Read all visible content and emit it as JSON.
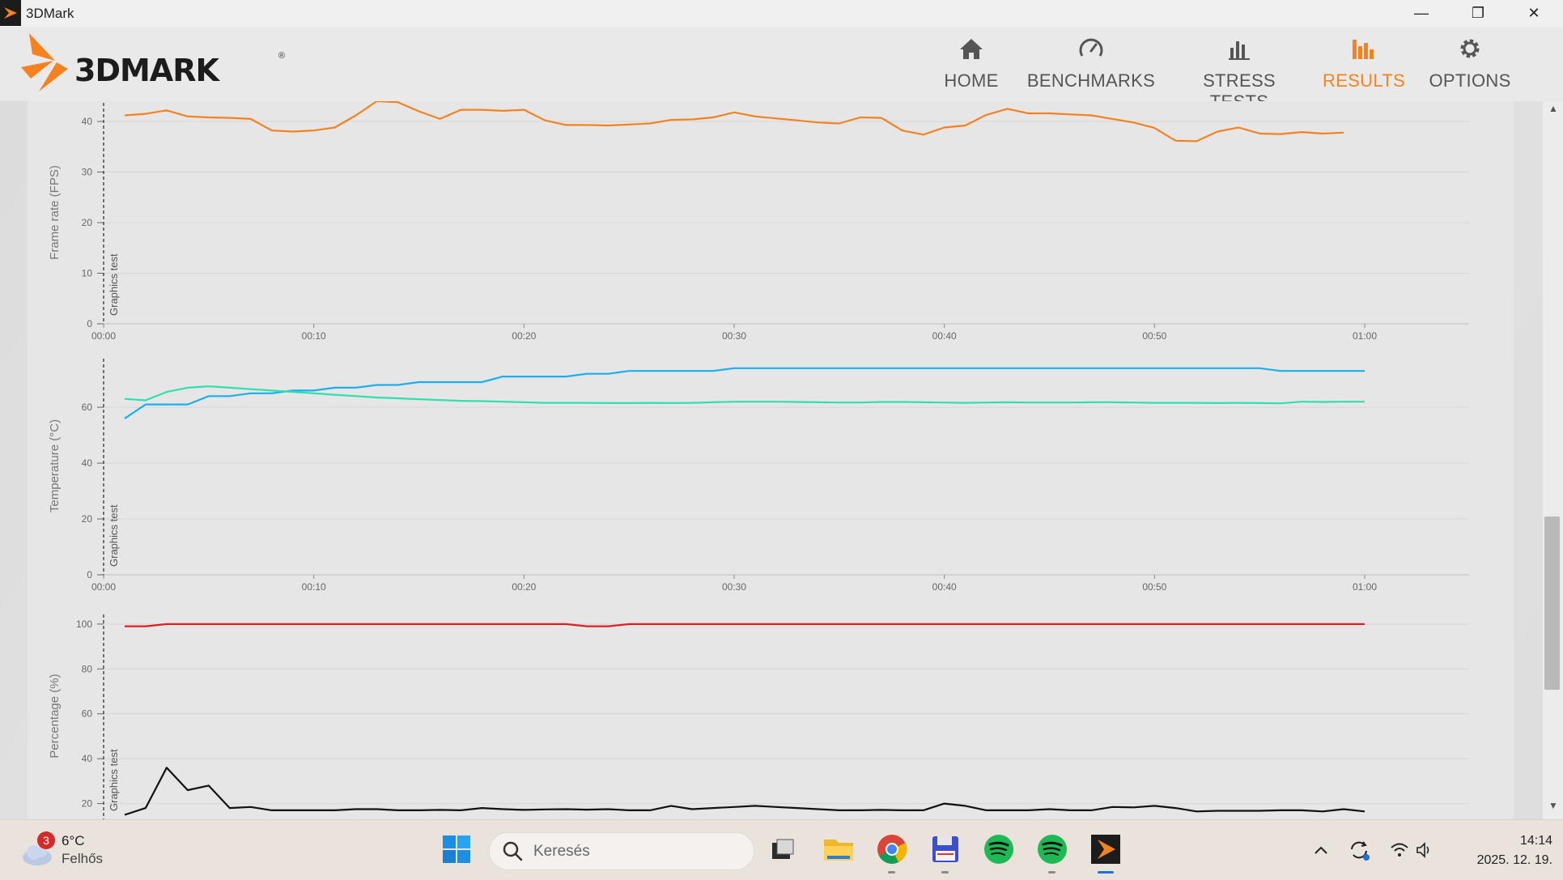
{
  "window": {
    "title": "3DMark",
    "controls": {
      "minimize": "—",
      "restore": "❐",
      "close": "✕"
    }
  },
  "header": {
    "logo_text": "3DMARK",
    "logo_reg": "®",
    "nav": [
      {
        "label": "HOME",
        "icon": "home-icon",
        "active": false
      },
      {
        "label": "BENCHMARKS",
        "icon": "speedometer-icon",
        "active": false
      },
      {
        "label": "STRESS TESTS",
        "icon": "bar-chart-icon",
        "active": false
      },
      {
        "label": "RESULTS",
        "icon": "results-chart-icon",
        "active": true
      },
      {
        "label": "OPTIONS",
        "icon": "gear-icon",
        "active": false
      }
    ],
    "colors": {
      "accent": "#f5821f",
      "nav_text": "#555555"
    }
  },
  "chart_data": [
    {
      "type": "line",
      "ylabel": "Frame rate (FPS)",
      "marker_label": "Graphics test",
      "xticks": [
        "00:00",
        "00:10",
        "00:20",
        "00:30",
        "00:40",
        "00:50",
        "01:00"
      ],
      "yticks": [
        0,
        10,
        20,
        30,
        40
      ],
      "xlim": [
        0,
        65
      ],
      "ylim": [
        0,
        44
      ],
      "series": [
        {
          "color": "#f5821f",
          "x": [
            1,
            2,
            3,
            4,
            5,
            6,
            7,
            8,
            9,
            10,
            11,
            12,
            13,
            14,
            15,
            16,
            17,
            18,
            19,
            20,
            21,
            22,
            23,
            24,
            25,
            26,
            27,
            28,
            29,
            30,
            31,
            32,
            33,
            34,
            35,
            36,
            37,
            38,
            39,
            40,
            41,
            42,
            43,
            44,
            45,
            46,
            47,
            48,
            49,
            50,
            51,
            52,
            53,
            54,
            55,
            56,
            57,
            58,
            59
          ],
          "values": [
            41.2,
            41.5,
            42.2,
            41.0,
            40.8,
            40.7,
            40.5,
            38.2,
            38.0,
            38.2,
            38.8,
            41.2,
            44.0,
            43.8,
            42.0,
            40.5,
            42.3,
            42.3,
            42.1,
            42.3,
            40.2,
            39.3,
            39.3,
            39.2,
            39.4,
            39.6,
            40.3,
            40.4,
            40.8,
            41.8,
            41.0,
            40.6,
            40.2,
            39.8,
            39.6,
            40.8,
            40.7,
            38.2,
            37.4,
            38.8,
            39.2,
            41.3,
            42.5,
            41.6,
            41.6,
            41.4,
            41.2,
            40.5,
            39.8,
            38.7,
            36.2,
            36.1,
            38.0,
            38.8,
            37.6,
            37.5,
            37.9,
            37.6,
            37.8
          ]
        }
      ]
    },
    {
      "type": "line",
      "ylabel": "Temperature (°C)",
      "marker_label": "Graphics test",
      "xticks": [
        "00:00",
        "00:10",
        "00:20",
        "00:30",
        "00:40",
        "00:50",
        "01:00"
      ],
      "yticks": [
        0,
        20,
        40,
        60
      ],
      "xlim": [
        0,
        65
      ],
      "ylim": [
        0,
        78
      ],
      "series": [
        {
          "color": "#1ab0f0",
          "x": [
            1,
            2,
            3,
            4,
            5,
            6,
            7,
            8,
            9,
            10,
            11,
            12,
            13,
            14,
            15,
            16,
            17,
            18,
            19,
            20,
            21,
            22,
            23,
            24,
            25,
            26,
            27,
            28,
            29,
            30,
            31,
            32,
            33,
            34,
            35,
            36,
            37,
            38,
            39,
            40,
            41,
            42,
            43,
            44,
            45,
            46,
            47,
            48,
            49,
            50,
            51,
            52,
            53,
            54,
            55,
            56,
            57,
            58,
            59,
            60
          ],
          "values": [
            56,
            61,
            61,
            61,
            64,
            64,
            65,
            65,
            66,
            66,
            67,
            67,
            68,
            68,
            69,
            69,
            69,
            69,
            71,
            71,
            71,
            71,
            72,
            72,
            73,
            73,
            73,
            73,
            73,
            74,
            74,
            74,
            74,
            74,
            74,
            74,
            74,
            74,
            74,
            74,
            74,
            74,
            74,
            74,
            74,
            74,
            74,
            74,
            74,
            74,
            74,
            74,
            74,
            74,
            74,
            73,
            73,
            73,
            73,
            73
          ]
        },
        {
          "color": "#2de0b0",
          "x": [
            1,
            2,
            3,
            4,
            5,
            6,
            7,
            8,
            9,
            10,
            11,
            12,
            13,
            14,
            15,
            16,
            17,
            18,
            19,
            20,
            21,
            22,
            23,
            24,
            25,
            26,
            27,
            28,
            29,
            30,
            31,
            32,
            33,
            34,
            35,
            36,
            37,
            38,
            39,
            40,
            41,
            42,
            43,
            44,
            45,
            46,
            47,
            48,
            49,
            50,
            51,
            52,
            53,
            54,
            55,
            56,
            57,
            58,
            59,
            60
          ],
          "values": [
            63,
            62.5,
            65.5,
            67,
            67.5,
            67,
            66.5,
            66,
            65.5,
            65,
            64.5,
            64,
            63.5,
            63.2,
            62.9,
            62.6,
            62.3,
            62.2,
            62,
            61.8,
            61.6,
            61.6,
            61.6,
            61.5,
            61.5,
            61.6,
            61.5,
            61.6,
            61.8,
            62,
            62,
            62,
            61.9,
            61.8,
            61.7,
            61.7,
            61.9,
            61.9,
            61.8,
            61.7,
            61.6,
            61.7,
            61.8,
            61.7,
            61.7,
            61.7,
            61.8,
            61.8,
            61.7,
            61.6,
            61.6,
            61.6,
            61.5,
            61.6,
            61.5,
            61.4,
            62,
            61.9,
            62,
            62
          ]
        }
      ]
    },
    {
      "type": "line",
      "ylabel": "Percentage (%)",
      "marker_label": "Graphics test",
      "xticks": [],
      "yticks": [
        20,
        40,
        60,
        80,
        100
      ],
      "xlim": [
        0,
        65
      ],
      "ylim": [
        13,
        105
      ],
      "series": [
        {
          "color": "#e02020",
          "x": [
            1,
            2,
            3,
            4,
            5,
            6,
            7,
            8,
            9,
            10,
            11,
            12,
            13,
            14,
            15,
            16,
            17,
            18,
            19,
            20,
            21,
            22,
            23,
            24,
            25,
            26,
            27,
            28,
            29,
            30,
            31,
            32,
            33,
            34,
            35,
            36,
            37,
            38,
            39,
            40,
            41,
            42,
            43,
            44,
            45,
            46,
            47,
            48,
            49,
            50,
            51,
            52,
            53,
            54,
            55,
            56,
            57,
            58,
            59,
            60
          ],
          "values": [
            99,
            99,
            100,
            100,
            100,
            100,
            100,
            100,
            100,
            100,
            100,
            100,
            100,
            100,
            100,
            100,
            100,
            100,
            100,
            100,
            100,
            100,
            99,
            99,
            100,
            100,
            100,
            100,
            100,
            100,
            100,
            100,
            100,
            100,
            100,
            100,
            100,
            100,
            100,
            100,
            100,
            100,
            100,
            100,
            100,
            100,
            100,
            100,
            100,
            100,
            100,
            100,
            100,
            100,
            100,
            100,
            100,
            100,
            100,
            100
          ]
        },
        {
          "color": "#111111",
          "x": [
            1,
            2,
            3,
            4,
            5,
            6,
            7,
            8,
            9,
            10,
            11,
            12,
            13,
            14,
            15,
            16,
            17,
            18,
            19,
            20,
            21,
            22,
            23,
            24,
            25,
            26,
            27,
            28,
            29,
            30,
            31,
            32,
            33,
            34,
            35,
            36,
            37,
            38,
            39,
            40,
            41,
            42,
            43,
            44,
            45,
            46,
            47,
            48,
            49,
            50,
            51,
            52,
            53,
            54,
            55,
            56,
            57,
            58,
            59,
            60
          ],
          "values": [
            15,
            18,
            36,
            26,
            28,
            18,
            18.5,
            17,
            17,
            17,
            17,
            17.5,
            17.5,
            17,
            17,
            17.2,
            17,
            18,
            17.5,
            17.2,
            17.4,
            17.5,
            17.3,
            17.5,
            17,
            17,
            19,
            17.5,
            18,
            18.5,
            19,
            18.5,
            18,
            17.5,
            17,
            17,
            17.2,
            17,
            17,
            20,
            19,
            17,
            17,
            17,
            17.5,
            17,
            17,
            18.5,
            18.3,
            19,
            18,
            16.5,
            16.8,
            16.8,
            16.8,
            17,
            17,
            16.5,
            17.5,
            16.5
          ]
        }
      ]
    }
  ],
  "taskbar": {
    "weather": {
      "badge": "3",
      "temp": "6°C",
      "desc": "Felhős"
    },
    "search_placeholder": "Keresés",
    "apps": [
      "windows-start-icon",
      "task-view-icon",
      "file-explorer-icon",
      "chrome-icon",
      "save-app-icon",
      "spotify-icon",
      "spotify-icon",
      "3dmark-icon"
    ],
    "clock": {
      "time": "14:14",
      "date": "2025. 12. 19."
    }
  }
}
